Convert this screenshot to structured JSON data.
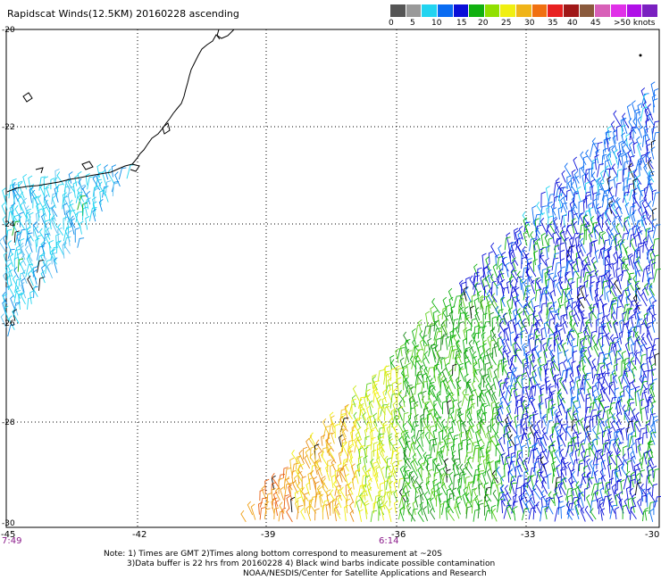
{
  "title": "Rapidscat Winds(12.5KM) 20160228 ascending",
  "legend": {
    "colors": [
      "#555555",
      "#999999",
      "#22d4f0",
      "#0a6cf2",
      "#0a10d8",
      "#10b010",
      "#90e000",
      "#f0ef10",
      "#f0b418",
      "#f07010",
      "#e82020",
      "#a01818",
      "#8a5a3c",
      "#d860b8",
      "#e030e8",
      "#b010e8",
      "#7a20c0"
    ],
    "labels": [
      "0",
      "5",
      "10",
      "15",
      "20",
      "25",
      "30",
      "35",
      "40",
      "45",
      ">50 knots"
    ]
  },
  "axes": {
    "y_labels": [
      "-20",
      "-22",
      "-24",
      "-26",
      "-28",
      "-30"
    ],
    "x_labels": [
      "-45",
      "-42",
      "-39",
      "-36",
      "-33",
      "-30"
    ],
    "time_labels": [
      "7:49",
      "6:14"
    ],
    "time_color": "#8a1a8a",
    "grid": "dotted"
  },
  "notes": {
    "line1": "Note: 1) Times are GMT 2)Times along bottom correspond to measurement at ~20S",
    "line2": "3)Data buffer is 22 hrs from 20160228 4) Black wind barbs indicate possible contamination",
    "line3": "NOAA/NESDIS/Center for Satellite Applications and Research"
  }
}
